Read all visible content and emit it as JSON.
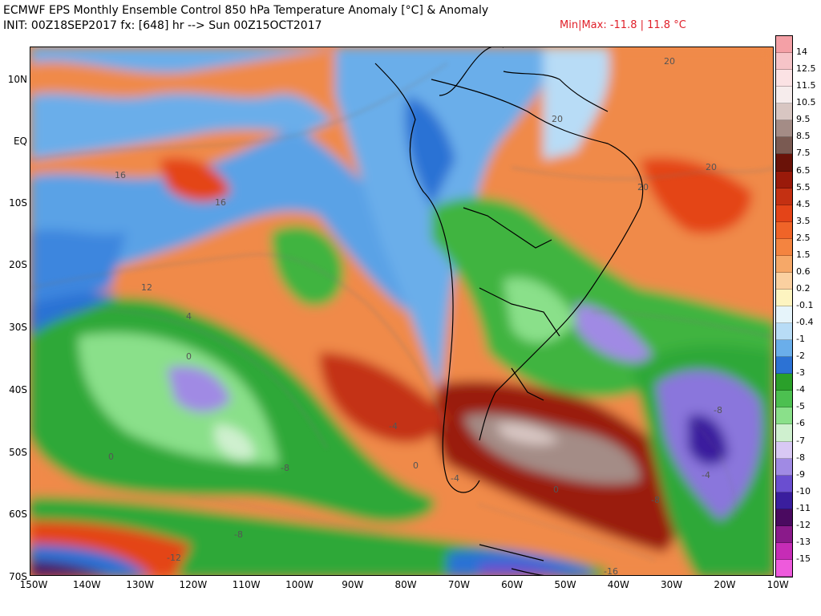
{
  "header": {
    "title": "ECMWF EPS Monthly Ensemble Control 850 hPa Temperature Anomaly [°C] & Anomaly",
    "init": "INIT: 00Z18SEP2017 fx: [648] hr --> Sun 00Z15OCT2017",
    "minmax": "Min|Max: -11.8 | 11.8 °C"
  },
  "axes": {
    "lat_labels": [
      "10N",
      "EQ",
      "10S",
      "20S",
      "30S",
      "40S",
      "50S",
      "60S",
      "70S"
    ],
    "lon_labels": [
      "150W",
      "140W",
      "130W",
      "120W",
      "110W",
      "100W",
      "90W",
      "80W",
      "70W",
      "60W",
      "50W",
      "40W",
      "30W",
      "20W",
      "10W"
    ]
  },
  "colorbar": {
    "levels": [
      "14",
      "12.5",
      "11.5",
      "10.5",
      "9.5",
      "8.5",
      "7.5",
      "6.5",
      "5.5",
      "4.5",
      "3.5",
      "2.5",
      "1.5",
      "0.6",
      "0.2",
      "-0.1",
      "-0.4",
      "-1",
      "-2",
      "-3",
      "-4",
      "-5",
      "-6",
      "-7",
      "-8",
      "-9",
      "-10",
      "-11",
      "-12",
      "-13",
      "-15"
    ],
    "colors": [
      "#f4a0a6",
      "#f6c4c8",
      "#fbe2e4",
      "#f6ecec",
      "#d8c6c2",
      "#a48c86",
      "#7a5a52",
      "#6a1208",
      "#9a1a0a",
      "#c43012",
      "#e44418",
      "#f06428",
      "#f48440",
      "#f6a868",
      "#fad0a0",
      "#fdf4c0",
      "#e6f4fa",
      "#b8dcf6",
      "#6aaeea",
      "#2c72d4",
      "#2aa02a",
      "#4cc050",
      "#8ae08a",
      "#cff0cf",
      "#d8c8f4",
      "#a08ae4",
      "#6a4ed0",
      "#3a1e9e",
      "#4a0a60",
      "#8a1a8a",
      "#c62cb6",
      "#ee5adc"
    ]
  },
  "contour_labels": [
    "20",
    "20",
    "20",
    "20",
    "16",
    "16",
    "12",
    "4",
    "0",
    "0",
    "0",
    "0",
    "-8",
    "-8",
    "-8",
    "-8",
    "-12",
    "-16",
    "-4",
    "-4",
    "-4"
  ]
}
